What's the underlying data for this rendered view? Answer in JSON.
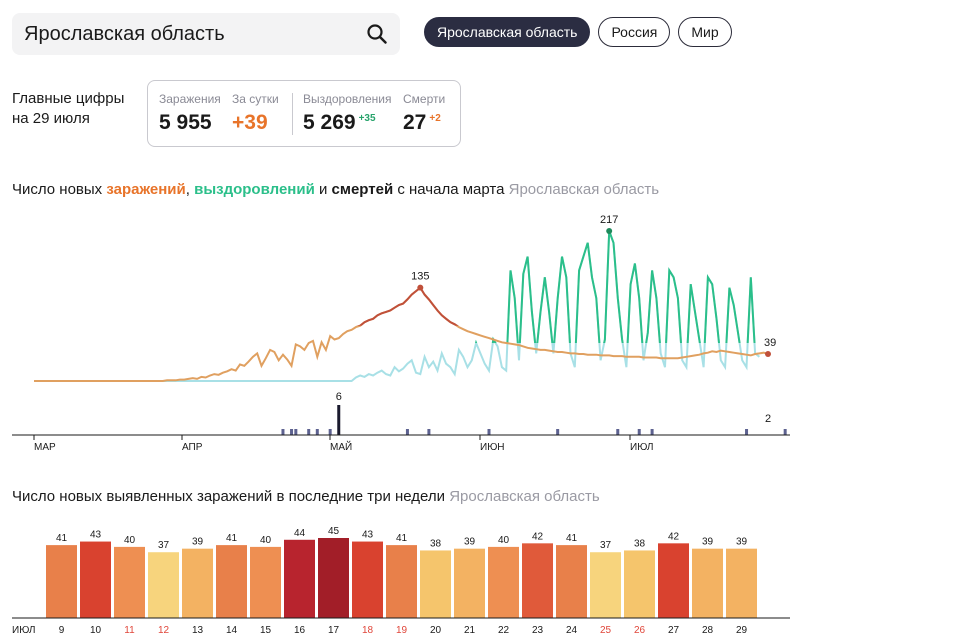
{
  "search": {
    "value": "Ярославская область"
  },
  "tabs": [
    {
      "label": "Ярославская область",
      "active": true
    },
    {
      "label": "Россия",
      "active": false
    },
    {
      "label": "Мир",
      "active": false
    }
  ],
  "summary": {
    "label_line1": "Главные цифры",
    "label_line2": "на 29 июля",
    "infections": {
      "label": "Заражения",
      "value": "5 955"
    },
    "per_day": {
      "label": "За сутки",
      "value": "+39"
    },
    "recovered": {
      "label": "Выздоровления",
      "value": "5 269",
      "delta": "+35"
    },
    "deaths": {
      "label": "Смерти",
      "value": "27",
      "delta": "+2"
    }
  },
  "chart1_title": {
    "part1": "Число новых ",
    "infections": "заражений",
    "comma": ", ",
    "recoveries": "выздоровлений",
    "and": " и ",
    "deaths": "смертей",
    "part2": " с начала марта",
    "region": "Ярославская область"
  },
  "chart2_title": {
    "text": "Число новых выявленных заражений в последние три недели",
    "region": "Ярославская область"
  },
  "colors": {
    "infections_line": "#e0a060",
    "infections_peak": "#c0503a",
    "recoveries_line": "#2bbf8a",
    "recoveries_light": "#a8e0e6",
    "deaths_bar": "#5d6290",
    "deaths_peak": "#1a1a2e"
  },
  "chart_data": [
    {
      "type": "line",
      "x_axis": [
        "МАР",
        "АПР",
        "МАЙ",
        "ИЮН",
        "ИЮЛ"
      ],
      "infections": [
        0,
        0,
        0,
        0,
        0,
        0,
        0,
        0,
        0,
        0,
        0,
        0,
        0,
        0,
        0,
        0,
        0,
        0,
        0,
        0,
        0,
        0,
        0,
        0,
        0,
        0,
        0,
        0,
        0,
        0,
        0,
        1,
        1,
        1,
        2,
        2,
        3,
        4,
        3,
        6,
        5,
        8,
        10,
        9,
        12,
        14,
        17,
        15,
        24,
        22,
        28,
        35,
        40,
        22,
        33,
        45,
        42,
        30,
        38,
        31,
        22,
        53,
        50,
        45,
        55,
        58,
        35,
        56,
        45,
        65,
        60,
        62,
        68,
        72,
        74,
        78,
        80,
        85,
        88,
        90,
        95,
        98,
        100,
        102,
        106,
        110,
        112,
        118,
        125,
        130,
        135,
        125,
        118,
        110,
        102,
        95,
        90,
        85,
        82,
        78,
        75,
        72,
        70,
        68,
        66,
        64,
        62,
        60,
        58,
        56,
        55,
        54,
        53,
        52,
        50,
        48,
        47,
        46,
        45,
        45,
        44,
        43,
        42,
        42,
        41,
        40,
        40,
        39,
        39,
        38,
        38,
        38,
        37,
        37,
        37,
        36,
        36,
        36,
        35,
        35,
        35,
        35,
        34,
        34,
        34,
        34,
        33,
        33,
        33,
        33,
        33,
        34,
        35,
        36,
        37,
        38,
        40,
        41,
        43,
        42,
        44,
        43,
        42,
        41,
        40,
        39,
        38,
        37,
        39,
        40,
        41,
        39
      ],
      "recoveries": [
        0,
        0,
        0,
        0,
        0,
        0,
        0,
        0,
        0,
        0,
        0,
        0,
        0,
        0,
        0,
        0,
        0,
        0,
        0,
        0,
        0,
        0,
        0,
        0,
        0,
        0,
        0,
        0,
        0,
        0,
        0,
        0,
        0,
        0,
        0,
        0,
        0,
        0,
        0,
        0,
        0,
        0,
        0,
        0,
        0,
        0,
        0,
        0,
        0,
        0,
        0,
        0,
        0,
        0,
        0,
        0,
        0,
        0,
        0,
        0,
        0,
        0,
        0,
        0,
        0,
        0,
        0,
        0,
        0,
        0,
        0,
        0,
        0,
        0,
        0,
        5,
        8,
        6,
        10,
        8,
        12,
        15,
        10,
        8,
        20,
        14,
        18,
        25,
        30,
        12,
        10,
        35,
        20,
        28,
        15,
        40,
        25,
        20,
        10,
        45,
        35,
        20,
        30,
        55,
        40,
        25,
        15,
        60,
        50,
        20,
        15,
        160,
        120,
        30,
        155,
        180,
        100,
        40,
        100,
        150,
        100,
        40,
        120,
        180,
        150,
        40,
        20,
        160,
        180,
        200,
        150,
        120,
        30,
        60,
        217,
        200,
        120,
        60,
        20,
        140,
        170,
        120,
        30,
        70,
        160,
        120,
        40,
        20,
        160,
        150,
        120,
        30,
        20,
        140,
        100,
        60,
        20,
        150,
        140,
        90,
        30,
        20,
        135,
        110,
        70,
        30,
        20,
        150,
        40,
        35
      ],
      "deaths": [
        0,
        0,
        0,
        0,
        0,
        0,
        0,
        0,
        0,
        0,
        0,
        0,
        0,
        0,
        0,
        0,
        0,
        0,
        0,
        0,
        0,
        0,
        0,
        0,
        0,
        0,
        0,
        0,
        0,
        0,
        0,
        0,
        0,
        0,
        0,
        0,
        0,
        0,
        0,
        0,
        0,
        0,
        0,
        0,
        0,
        0,
        0,
        0,
        0,
        0,
        0,
        0,
        0,
        0,
        0,
        0,
        0,
        0,
        1,
        0,
        1,
        1,
        0,
        0,
        1,
        0,
        1,
        0,
        0,
        1,
        0,
        6,
        0,
        0,
        0,
        0,
        0,
        0,
        0,
        0,
        0,
        0,
        0,
        0,
        0,
        0,
        0,
        1,
        0,
        0,
        0,
        0,
        1,
        0,
        0,
        0,
        0,
        0,
        0,
        0,
        0,
        0,
        0,
        0,
        0,
        0,
        1,
        0,
        0,
        0,
        0,
        0,
        0,
        0,
        0,
        0,
        0,
        0,
        0,
        0,
        0,
        0,
        1,
        0,
        0,
        0,
        0,
        0,
        0,
        0,
        0,
        0,
        0,
        0,
        0,
        0,
        1,
        0,
        0,
        0,
        0,
        1,
        0,
        0,
        1,
        0,
        0,
        0,
        0,
        0,
        0,
        0,
        0,
        0,
        0,
        0,
        0,
        0,
        0,
        0,
        0,
        0,
        0,
        0,
        0,
        0,
        1,
        0,
        0,
        0,
        0,
        0,
        0,
        0,
        0,
        1,
        0,
        0,
        0,
        0,
        0,
        0,
        2
      ],
      "labels": {
        "infections_peak": "135",
        "recoveries_peak": "217",
        "deaths_peak": "6",
        "last_infections": "39",
        "last_recoveries": "35",
        "last_deaths": "2"
      }
    },
    {
      "type": "bar",
      "month_label": "ИЮЛ",
      "categories": [
        "9",
        "10",
        "11",
        "12",
        "13",
        "14",
        "15",
        "16",
        "17",
        "18",
        "19",
        "20",
        "21",
        "22",
        "23",
        "24",
        "25",
        "26",
        "27",
        "28",
        "29"
      ],
      "values": [
        41,
        43,
        40,
        37,
        39,
        41,
        40,
        44,
        45,
        43,
        41,
        38,
        39,
        40,
        42,
        41,
        37,
        38,
        42,
        39,
        39
      ],
      "weekend": [
        false,
        false,
        true,
        true,
        false,
        false,
        false,
        false,
        false,
        true,
        true,
        false,
        false,
        false,
        false,
        false,
        true,
        true,
        false,
        false,
        false
      ],
      "bar_colors": [
        "#e8804a",
        "#d9422f",
        "#ee8f52",
        "#f7d47d",
        "#f3b262",
        "#e8804a",
        "#ee8f52",
        "#b8242e",
        "#a21e28",
        "#d9422f",
        "#e8804a",
        "#f5c56c",
        "#f3b262",
        "#ee8f52",
        "#e05a3a",
        "#e8804a",
        "#f7d47d",
        "#f5c56c",
        "#d9422f",
        "#f3b262",
        "#f3b262"
      ],
      "ylim": [
        0,
        45
      ]
    }
  ]
}
